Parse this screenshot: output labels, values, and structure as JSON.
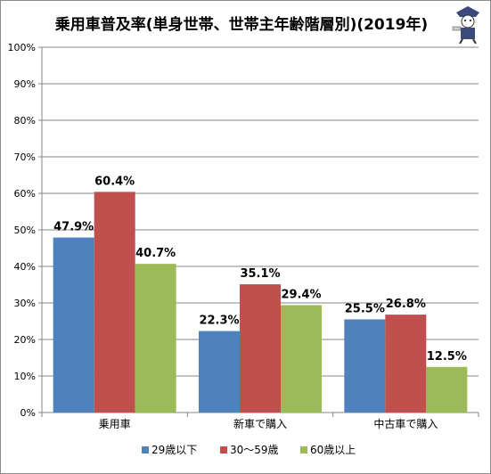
{
  "chart_data": {
    "type": "bar",
    "title": "乗用車普及率(単身世帯、世帯主年齢階層別)(2019年)",
    "categories": [
      "乗用車",
      "新車で購入",
      "中古車で購入"
    ],
    "series": [
      {
        "name": "29歳以下",
        "values": [
          47.9,
          22.3,
          25.5
        ],
        "color": "#4f81bd"
      },
      {
        "name": "30〜59歳",
        "values": [
          60.4,
          35.1,
          26.8
        ],
        "color": "#c0504d"
      },
      {
        "name": "60歳以上",
        "values": [
          40.7,
          29.4,
          12.5
        ],
        "color": "#9bbb59"
      }
    ],
    "data_labels": [
      [
        "47.9%",
        "22.3%",
        "25.5%"
      ],
      [
        "60.4%",
        "35.1%",
        "26.8%"
      ],
      [
        "40.7%",
        "29.4%",
        "12.5%"
      ]
    ],
    "yticks": [
      "0%",
      "10%",
      "20%",
      "30%",
      "40%",
      "50%",
      "60%",
      "70%",
      "80%",
      "90%",
      "100%"
    ],
    "ylim": [
      0,
      100
    ],
    "grid": true,
    "legend": "bottom"
  }
}
